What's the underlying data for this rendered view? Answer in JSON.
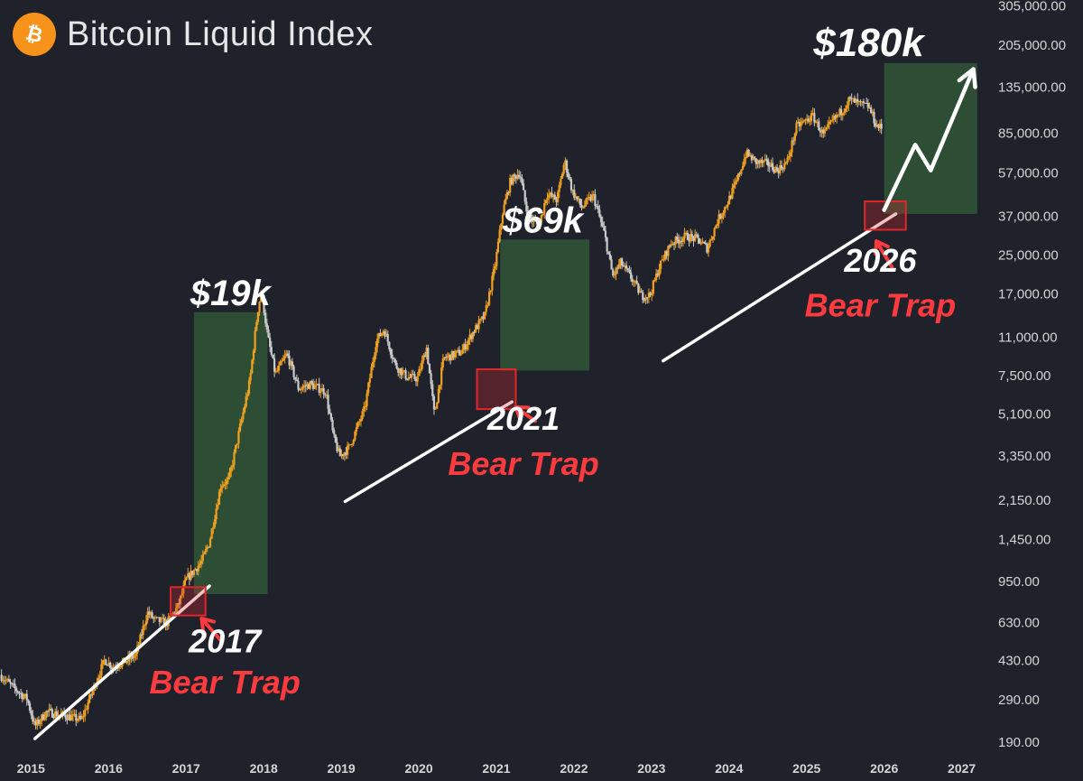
{
  "chart_data": {
    "type": "candlestick",
    "title": "Bitcoin Liquid Index",
    "y_scale": "log",
    "ylim": [
      175,
      320000
    ],
    "y_ticks": [
      "305,000.00",
      "205,000.00",
      "135,000.00",
      "85,000.00",
      "57,000.00",
      "37,000.00",
      "25,000.00",
      "17,000.00",
      "11,000.00",
      "7,500.00",
      "5,100.00",
      "3,350.00",
      "2,150.00",
      "1,450.00",
      "950.00",
      "630.00",
      "430.00",
      "290.00",
      "190.00"
    ],
    "x_ticks": [
      "2015",
      "2016",
      "2017",
      "2018",
      "2019",
      "2020",
      "2021",
      "2022",
      "2023",
      "2024",
      "2025",
      "2026",
      "2027"
    ],
    "xlim": [
      2014.6,
      2027.4
    ],
    "price_path": [
      [
        2014.6,
        370
      ],
      [
        2014.75,
        330
      ],
      [
        2014.95,
        290
      ],
      [
        2015.05,
        220
      ],
      [
        2015.2,
        255
      ],
      [
        2015.45,
        245
      ],
      [
        2015.65,
        235
      ],
      [
        2015.8,
        320
      ],
      [
        2015.95,
        430
      ],
      [
        2016.05,
        400
      ],
      [
        2016.2,
        420
      ],
      [
        2016.35,
        450
      ],
      [
        2016.5,
        690
      ],
      [
        2016.6,
        640
      ],
      [
        2016.75,
        620
      ],
      [
        2016.9,
        740
      ],
      [
        2017.0,
        960
      ],
      [
        2017.1,
        1050
      ],
      [
        2017.2,
        1150
      ],
      [
        2017.3,
        1400
      ],
      [
        2017.45,
        2500
      ],
      [
        2017.55,
        2600
      ],
      [
        2017.7,
        4500
      ],
      [
        2017.82,
        7000
      ],
      [
        2017.92,
        14000
      ],
      [
        2017.97,
        17500
      ],
      [
        2018.05,
        11000
      ],
      [
        2018.15,
        7500
      ],
      [
        2018.3,
        9200
      ],
      [
        2018.45,
        6500
      ],
      [
        2018.6,
        6800
      ],
      [
        2018.8,
        6300
      ],
      [
        2018.9,
        4000
      ],
      [
        2018.98,
        3300
      ],
      [
        2019.1,
        3600
      ],
      [
        2019.3,
        5300
      ],
      [
        2019.45,
        10500
      ],
      [
        2019.55,
        11800
      ],
      [
        2019.7,
        8200
      ],
      [
        2019.85,
        7300
      ],
      [
        2019.98,
        7200
      ],
      [
        2020.1,
        9800
      ],
      [
        2020.2,
        5000
      ],
      [
        2020.32,
        8800
      ],
      [
        2020.55,
        9400
      ],
      [
        2020.7,
        11500
      ],
      [
        2020.85,
        13500
      ],
      [
        2020.98,
        22000
      ],
      [
        2021.08,
        38000
      ],
      [
        2021.18,
        52000
      ],
      [
        2021.3,
        57000
      ],
      [
        2021.4,
        37000
      ],
      [
        2021.55,
        33000
      ],
      [
        2021.65,
        46000
      ],
      [
        2021.78,
        43000
      ],
      [
        2021.88,
        64000
      ],
      [
        2021.98,
        47000
      ],
      [
        2022.1,
        40000
      ],
      [
        2022.25,
        45000
      ],
      [
        2022.4,
        30000
      ],
      [
        2022.5,
        20000
      ],
      [
        2022.6,
        23000
      ],
      [
        2022.75,
        19500
      ],
      [
        2022.87,
        16500
      ],
      [
        2022.98,
        16600
      ],
      [
        2023.1,
        22000
      ],
      [
        2023.25,
        28000
      ],
      [
        2023.45,
        30000
      ],
      [
        2023.6,
        29000
      ],
      [
        2023.72,
        26500
      ],
      [
        2023.85,
        35000
      ],
      [
        2023.98,
        42000
      ],
      [
        2024.1,
        52000
      ],
      [
        2024.22,
        69000
      ],
      [
        2024.35,
        63000
      ],
      [
        2024.5,
        62000
      ],
      [
        2024.62,
        58000
      ],
      [
        2024.75,
        63000
      ],
      [
        2024.87,
        90000
      ],
      [
        2024.98,
        95000
      ],
      [
        2025.08,
        100000
      ],
      [
        2025.22,
        82000
      ],
      [
        2025.32,
        94000
      ],
      [
        2025.45,
        105000
      ],
      [
        2025.55,
        118000
      ],
      [
        2025.7,
        112000
      ],
      [
        2025.8,
        110000
      ],
      [
        2025.9,
        91000
      ],
      [
        2025.98,
        88000
      ]
    ],
    "trend_lines": [
      {
        "from": [
          2015.05,
          195
        ],
        "to": [
          2017.3,
          900
        ]
      },
      {
        "from": [
          2019.05,
          2100
        ],
        "to": [
          2021.2,
          5700
        ]
      },
      {
        "from": [
          2023.15,
          8600
        ],
        "to": [
          2026.15,
          37500
        ]
      }
    ],
    "green_zones": [
      {
        "x": [
          2017.1,
          2018.05
        ],
        "y": [
          830,
          14000
        ]
      },
      {
        "x": [
          2021.05,
          2022.2
        ],
        "y": [
          7800,
          29000
        ]
      },
      {
        "x": [
          2026.0,
          2027.2
        ],
        "y": [
          37500,
          170000
        ]
      }
    ],
    "red_boxes": [
      {
        "x": [
          2016.8,
          2017.25
        ],
        "y": [
          670,
          890
        ]
      },
      {
        "x": [
          2020.75,
          2021.25
        ],
        "y": [
          5300,
          7900
        ]
      },
      {
        "x": [
          2025.75,
          2026.28
        ],
        "y": [
          32000,
          42500
        ]
      }
    ],
    "projection_arrow": [
      [
        2026.0,
        39000
      ],
      [
        2026.4,
        75000
      ],
      [
        2026.6,
        58000
      ],
      [
        2027.15,
        160000
      ]
    ],
    "annotations": [
      {
        "id": "label-19k",
        "text": "$19k",
        "color": "#ffffff",
        "year": 2017.57,
        "price": 14000
      },
      {
        "id": "label-69k",
        "text": "$69k",
        "color": "#ffffff",
        "year": 2021.6,
        "price": 29000
      },
      {
        "id": "label-180k",
        "text": "$180k",
        "color": "#ffffff",
        "year": 2025.8,
        "price": 170000
      },
      {
        "id": "label-2017",
        "text": "2017",
        "color": "#ffffff",
        "year": 2017.5,
        "price": 430
      },
      {
        "id": "label-2017-trap",
        "text": "Bear Trap",
        "color": "#ff3b3f",
        "year": 2017.5,
        "price": 285
      },
      {
        "id": "label-2021",
        "text": "2021",
        "color": "#ffffff",
        "year": 2021.35,
        "price": 4000
      },
      {
        "id": "label-2021-trap",
        "text": "Bear Trap",
        "color": "#ff3b3f",
        "year": 2021.35,
        "price": 2550
      },
      {
        "id": "label-2026",
        "text": "2026",
        "color": "#ffffff",
        "year": 2025.95,
        "price": 19500
      },
      {
        "id": "label-2026-trap",
        "text": "Bear Trap",
        "color": "#ff3b3f",
        "year": 2025.95,
        "price": 12500
      }
    ],
    "red_arrows": [
      {
        "from": [
          2017.45,
          520
        ],
        "to": [
          2017.2,
          650
        ]
      },
      {
        "from": [
          2021.5,
          4700
        ],
        "to": [
          2021.25,
          5400
        ]
      },
      {
        "from": [
          2026.1,
          22000
        ],
        "to": [
          2025.9,
          28500
        ]
      }
    ],
    "colors": {
      "background": "#1f222b",
      "candle_up": "#f0a020",
      "candle_down": "#c9c9c9",
      "green_zone": "#2d4d35",
      "red_box": "#e0262b",
      "label_red": "#ff3b3f",
      "axis_text": "#d5d5d5"
    }
  }
}
